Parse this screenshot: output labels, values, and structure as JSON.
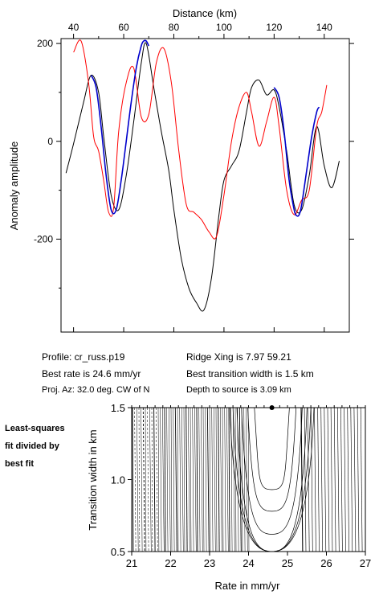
{
  "chart_data": [
    {
      "type": "line",
      "xlabel": "Distance (km)",
      "ylabel": "Anomaly amplitude",
      "xlim": [
        35,
        150
      ],
      "ylim": [
        -390,
        210
      ],
      "x_ticks": [
        "40",
        "60",
        "80",
        "100",
        "120",
        "140"
      ],
      "y_ticks": [
        "200",
        "0",
        "-200"
      ],
      "series": [
        {
          "color": "#000000",
          "x": [
            37,
            40,
            44,
            47,
            50,
            52,
            55,
            58,
            61,
            64,
            67,
            69,
            72,
            75,
            78,
            80,
            83,
            86,
            89,
            92,
            95,
            98,
            100,
            103,
            106,
            109,
            111,
            114,
            117,
            120,
            122,
            125,
            128,
            131,
            134,
            137,
            140,
            143,
            146
          ],
          "y": [
            -65,
            -5,
            80,
            135,
            100,
            10,
            -110,
            -140,
            -70,
            40,
            160,
            200,
            110,
            20,
            -60,
            -140,
            -240,
            -300,
            -330,
            -345,
            -280,
            -150,
            -80,
            -50,
            -20,
            60,
            110,
            125,
            95,
            105,
            70,
            -20,
            -130,
            -140,
            -70,
            30,
            -50,
            -95,
            -40
          ]
        },
        {
          "color": "#ff0000",
          "x": [
            40,
            43,
            46,
            48,
            50,
            52,
            54,
            56,
            58,
            61,
            64,
            67,
            70,
            73,
            76,
            79,
            82,
            85,
            88,
            91,
            94,
            97,
            100,
            103,
            106,
            109,
            111,
            114,
            117,
            120,
            122,
            125,
            128,
            131,
            134,
            137,
            139,
            141
          ],
          "y": [
            182,
            205,
            120,
            10,
            -20,
            -80,
            -145,
            -135,
            20,
            120,
            150,
            50,
            55,
            160,
            190,
            120,
            -20,
            -130,
            -145,
            -160,
            -185,
            -195,
            -110,
            0,
            70,
            100,
            60,
            -10,
            40,
            90,
            30,
            -100,
            -150,
            -120,
            -100,
            30,
            60,
            115
          ]
        },
        {
          "color": "#0000cc",
          "x": [
            47,
            49,
            51,
            53,
            55,
            57,
            59,
            61,
            63,
            65,
            67,
            68,
            69,
            70
          ],
          "y": [
            135,
            110,
            30,
            -70,
            -140,
            -140,
            -80,
            0,
            80,
            150,
            195,
            205,
            205,
            195
          ]
        },
        {
          "color": "#0000cc",
          "x": [
            120,
            122,
            124,
            126,
            128,
            129,
            130,
            131,
            133,
            135,
            137,
            138
          ],
          "y": [
            110,
            90,
            20,
            -80,
            -140,
            -152,
            -150,
            -130,
            -60,
            10,
            60,
            70
          ]
        }
      ]
    },
    {
      "type": "contour",
      "xlabel": "Rate in mm/yr",
      "ylabel": "Transition width in km",
      "xlim": [
        21,
        27
      ],
      "ylim": [
        0.5,
        1.5
      ],
      "x_ticks": [
        "21",
        "22",
        "23",
        "24",
        "25",
        "26",
        "27"
      ],
      "y_ticks": [
        "0.5",
        "1.0",
        "1.5"
      ],
      "best_point": {
        "x": 24.6,
        "y": 1.5
      }
    }
  ],
  "info": {
    "profile": "Profile: cr_russ.p19",
    "best_rate": "Best rate is 24.6 mm/yr",
    "proj_az": "Proj. Az: 32.0 deg. CW of N",
    "ridge_xing": "Ridge Xing is 7.97 59.21",
    "best_width": "Best transition width is 1.5 km",
    "depth": "Depth to source is   3.09 km"
  },
  "side_note": {
    "line1": "Least-squares",
    "line2": "fit divided by",
    "line3": "best fit"
  }
}
